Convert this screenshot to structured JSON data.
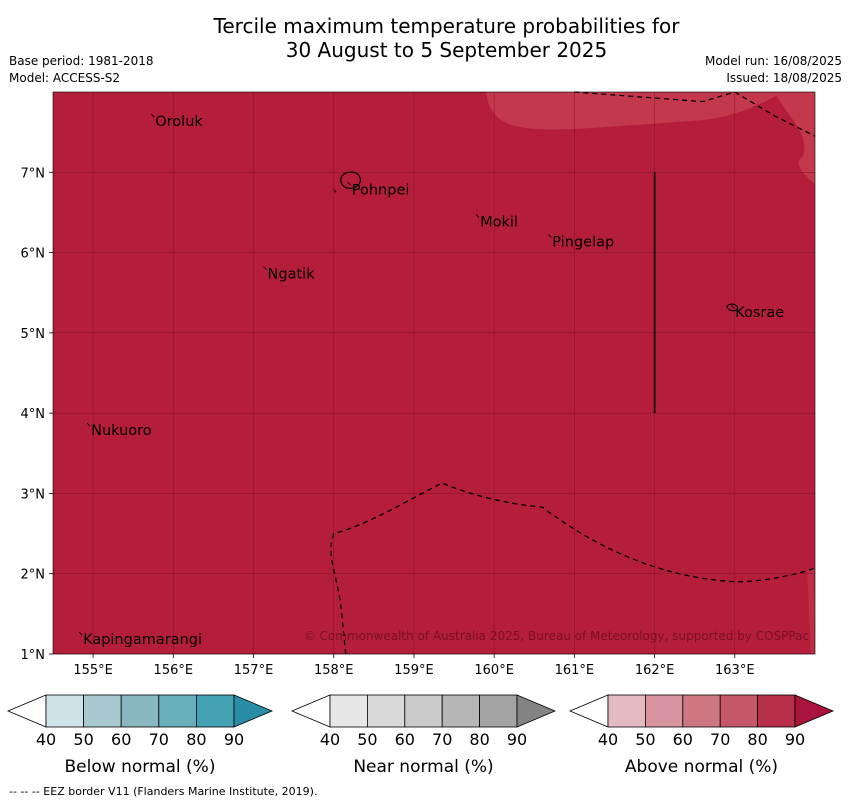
{
  "title_line1": "Tercile maximum temperature probabilities for",
  "title_line2": "30 August to 5 September 2025",
  "meta": {
    "base_period": "Base period: 1981-2018",
    "model": "Model: ACCESS-S2",
    "model_run": "Model run: 16/08/2025",
    "issued": "Issued: 18/08/2025"
  },
  "map": {
    "lon_ticks": [
      "155°E",
      "156°E",
      "157°E",
      "158°E",
      "159°E",
      "160°E",
      "161°E",
      "162°E",
      "163°E"
    ],
    "lat_ticks": [
      "7°N",
      "6°N",
      "5°N",
      "4°N",
      "3°N",
      "2°N",
      "1°N"
    ],
    "places": [
      {
        "name": "Oroluk",
        "lon": 155.75,
        "lat": 7.7
      },
      {
        "name": "Pohnpei",
        "lon": 158.2,
        "lat": 6.85
      },
      {
        "name": "Mokil",
        "lon": 159.8,
        "lat": 6.45
      },
      {
        "name": "Pingelap",
        "lon": 160.7,
        "lat": 6.2
      },
      {
        "name": "Ngatik",
        "lon": 157.15,
        "lat": 5.8
      },
      {
        "name": "Kosrae",
        "lon": 162.98,
        "lat": 5.32
      },
      {
        "name": "Nukuoro",
        "lon": 154.95,
        "lat": 3.85
      },
      {
        "name": "Kapingamarangi",
        "lon": 154.85,
        "lat": 1.25
      }
    ],
    "colors": {
      "main": "#b41e3a",
      "lighter": "#c4384e",
      "grid": "#7a1024"
    },
    "copyright": "© Commonwealth of Australia 2025, Bureau of Meteorology, supported by COSPPac"
  },
  "colorbars": [
    {
      "title": "Below normal (%)",
      "ticks": [
        "40",
        "50",
        "60",
        "70",
        "80",
        "90"
      ],
      "colors": [
        "#ffffff",
        "#cde3e8",
        "#a7c9cf",
        "#8ab8c1",
        "#69aebb",
        "#42a1b2",
        "#2b8ca8"
      ]
    },
    {
      "title": "Near normal (%)",
      "ticks": [
        "40",
        "50",
        "60",
        "70",
        "80",
        "90"
      ],
      "colors": [
        "#ffffff",
        "#e7e7e7",
        "#d9d9d9",
        "#cacaca",
        "#b6b6b6",
        "#a3a3a3",
        "#838383"
      ]
    },
    {
      "title": "Above normal (%)",
      "ticks": [
        "40",
        "50",
        "60",
        "70",
        "80",
        "90"
      ],
      "colors": [
        "#ffffff",
        "#e3bac0",
        "#d8959f",
        "#cd7783",
        "#c65769",
        "#b82f49",
        "#a8143a"
      ]
    }
  ],
  "footnote": "--  --  -- EEZ border V11 (Flanders Marine Institute, 2019)."
}
